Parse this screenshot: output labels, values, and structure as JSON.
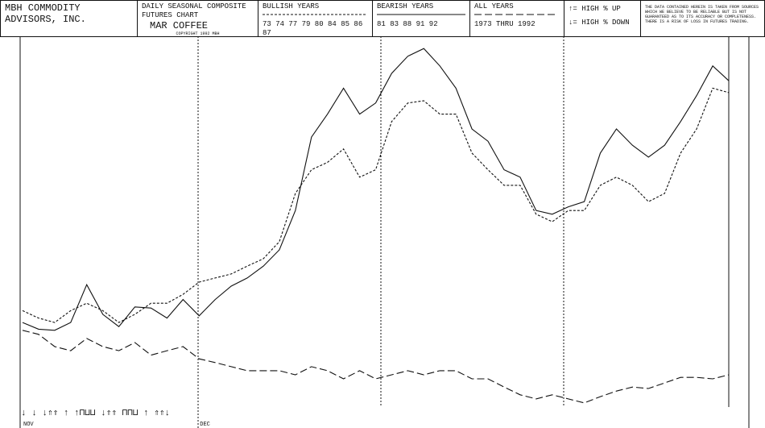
{
  "header": {
    "company": "MBH COMMODITY ADVISORS, INC.",
    "chart_kind": "DAILY SEASONAL COMPOSITE FUTURES CHART",
    "copyright": "COPYRIGHT 1992 MBH",
    "bullish_years": "73 74 77 79 80 84 85 86 87",
    "bearish_years": "81 83 88 91 92",
    "all_years": "1973 THRU 1992",
    "key_up": "↑= HIGH % UP",
    "key_down": "↓= HIGH % DOWN",
    "disclaimer": "THE DATA CONTAINED HEREIN IS TAKEN FROM SOURCES WHICH WE BELIEVE TO BE RELIABLE BUT IS NOT GUARANTEED AS TO ITS ACCURACY OR COMPLETENESS. THERE IS A RISK OF LOSS IN FUTURES TRADING."
  },
  "chart_data": {
    "type": "line",
    "title": "MAR COFFEE",
    "annotation": "↓ ↓ ↓⇑⇑ ↑ ↑⊓⊔⊔ ↓⇑⇑ ⊓⊓⊔ ↑ ⇑⇑↓",
    "categories": [
      "NOV",
      null,
      null,
      null,
      null,
      null,
      null,
      null,
      null,
      null,
      null,
      "DEC",
      null,
      null,
      null,
      null,
      null,
      null,
      null,
      null,
      null,
      null,
      null,
      null,
      null,
      null,
      null,
      null,
      null,
      null,
      null,
      null,
      null,
      null,
      null,
      null,
      null,
      null,
      null,
      null,
      null,
      null,
      null,
      null,
      null
    ],
    "ylim": [
      0,
      100
    ],
    "series": [
      {
        "name": "BULLISH YEARS",
        "color": "#111111",
        "dash": "dotted",
        "values": [
          26,
          24,
          22.8,
          26,
          28,
          26,
          22.8,
          25,
          28,
          28,
          30.4,
          33.7,
          34.8,
          35.9,
          38,
          40,
          44.6,
          57.6,
          64,
          66,
          69.6,
          62,
          64,
          77,
          82,
          82.6,
          79,
          79,
          68.5,
          64,
          59.8,
          59.8,
          52,
          50,
          53,
          53,
          59.8,
          62,
          59.8,
          55.4,
          57.6,
          68.5,
          75,
          86,
          84.8
        ]
      },
      {
        "name": "BEARISH YEARS",
        "color": "#111111",
        "dash": "solid",
        "values": [
          22.8,
          21,
          20.7,
          22.8,
          33,
          25,
          21.7,
          27,
          26.7,
          24,
          29,
          24.6,
          29,
          32.6,
          34.8,
          38,
          42.4,
          53,
          72.8,
          79,
          86,
          79,
          82,
          90,
          94.6,
          96.7,
          92,
          86,
          75,
          71.7,
          64,
          62,
          53,
          52,
          54,
          55.4,
          68.5,
          75,
          70.6,
          67.4,
          70.6,
          77,
          84,
          92,
          88
        ]
      },
      {
        "name": "ALL YEARS",
        "color": "#111111",
        "dash": "long-dash",
        "values": [
          20.7,
          19.6,
          16.3,
          15.2,
          18.5,
          16.3,
          15.2,
          17.4,
          14,
          15.2,
          16.3,
          13,
          12,
          10.9,
          9.8,
          9.8,
          9.8,
          8.7,
          10.9,
          9.8,
          7.6,
          9.8,
          7.6,
          8.7,
          9.8,
          8.7,
          9.8,
          9.8,
          7.6,
          7.6,
          5.4,
          3.3,
          2.2,
          3.3,
          2.2,
          1.1,
          2.8,
          4.3,
          5.4,
          5,
          6.5,
          8,
          8,
          7.6,
          8.7
        ]
      }
    ]
  }
}
